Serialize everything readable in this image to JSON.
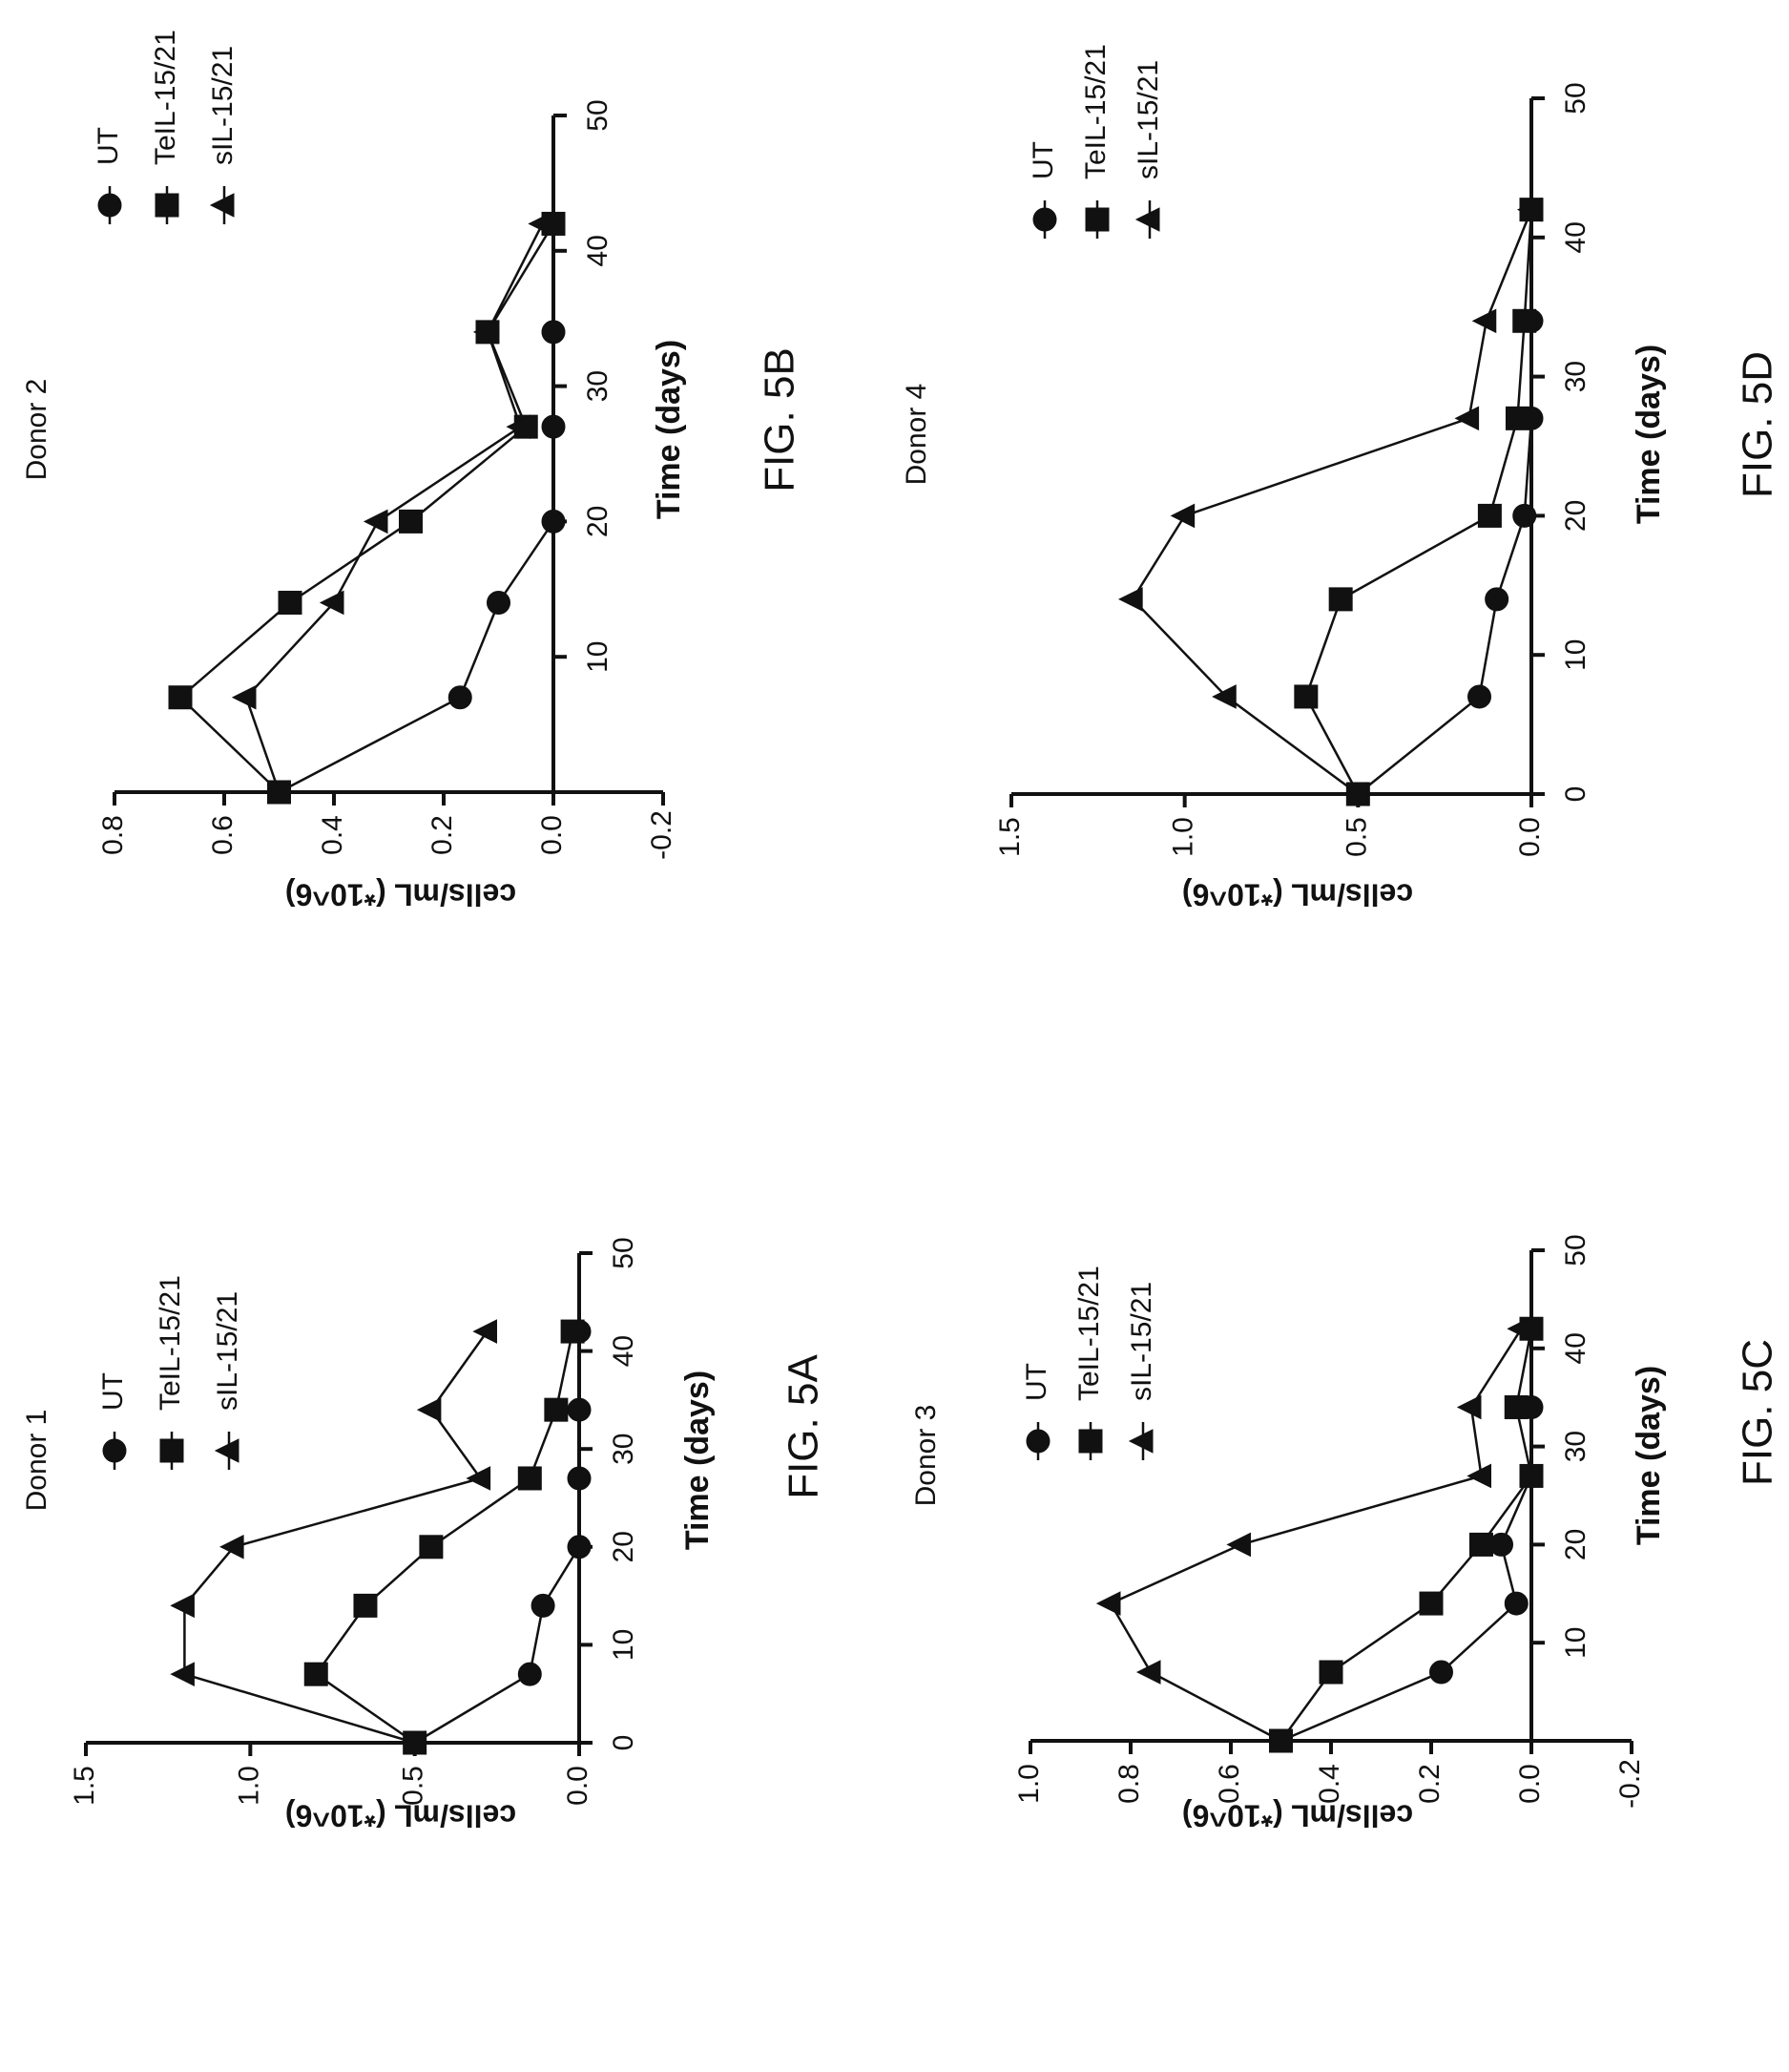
{
  "chart_data": [
    {
      "type": "line",
      "figure_label": "FIG. 5A",
      "title": "Donor 1",
      "xlabel": "Time (days)",
      "ylabel": "cells/mL (*10^6)",
      "xlim": [
        0,
        50
      ],
      "ylim": [
        0,
        1.5
      ],
      "xticks": [
        "0",
        "10",
        "20",
        "30",
        "40",
        "50"
      ],
      "yticks": [
        "0.0",
        "0.5",
        "1.0",
        "1.5"
      ],
      "legend_position": "top-right",
      "series": [
        {
          "name": "UT",
          "marker": "circle",
          "x": [
            0,
            7,
            14,
            20,
            27,
            34,
            42
          ],
          "y": [
            0.5,
            0.15,
            0.11,
            0.0,
            0.0,
            0.0,
            0.0
          ]
        },
        {
          "name": "TeIL-15/21",
          "marker": "square",
          "x": [
            0,
            7,
            14,
            20,
            27,
            34,
            42
          ],
          "y": [
            0.5,
            0.8,
            0.65,
            0.45,
            0.15,
            0.07,
            0.02
          ]
        },
        {
          "name": "sIL-15/21",
          "marker": "triangle",
          "x": [
            0,
            7,
            14,
            20,
            27,
            34,
            42
          ],
          "y": [
            0.5,
            1.2,
            1.2,
            1.05,
            0.3,
            0.45,
            0.28
          ]
        }
      ]
    },
    {
      "type": "line",
      "figure_label": "FIG. 5B",
      "title": "Donor 2",
      "xlabel": "Time (days)",
      "ylabel": "cells/mL (*10^6)",
      "xlim": [
        0,
        50
      ],
      "ylim": [
        -0.2,
        0.8
      ],
      "xticks": [
        "10",
        "20",
        "30",
        "40",
        "50"
      ],
      "yticks": [
        "-0.2",
        "0.0",
        "0.2",
        "0.4",
        "0.6",
        "0.8"
      ],
      "legend_position": "top-right",
      "series": [
        {
          "name": "UT",
          "marker": "circle",
          "x": [
            0,
            7,
            14,
            20,
            27,
            34,
            42
          ],
          "y": [
            0.5,
            0.17,
            0.1,
            0.0,
            0.0,
            0.0,
            0.0
          ]
        },
        {
          "name": "TeIL-15/21",
          "marker": "square",
          "x": [
            0,
            7,
            14,
            20,
            27,
            34,
            42
          ],
          "y": [
            0.5,
            0.68,
            0.48,
            0.26,
            0.05,
            0.12,
            0.0
          ]
        },
        {
          "name": "sIL-15/21",
          "marker": "triangle",
          "x": [
            0,
            7,
            14,
            20,
            27,
            34,
            42
          ],
          "y": [
            0.5,
            0.56,
            0.4,
            0.32,
            0.06,
            0.12,
            0.02
          ]
        }
      ]
    },
    {
      "type": "line",
      "figure_label": "FIG. 5C",
      "title": "Donor 3",
      "xlabel": "Time (days)",
      "ylabel": "cells/mL (*10^6)",
      "xlim": [
        0,
        50
      ],
      "ylim": [
        -0.2,
        1.0
      ],
      "xticks": [
        "10",
        "20",
        "30",
        "40",
        "50"
      ],
      "yticks": [
        "-0.2",
        "0.0",
        "0.2",
        "0.4",
        "0.6",
        "0.8",
        "1.0"
      ],
      "legend_position": "top-right",
      "series": [
        {
          "name": "UT",
          "marker": "circle",
          "x": [
            0,
            7,
            14,
            20,
            27,
            34,
            42
          ],
          "y": [
            0.5,
            0.18,
            0.03,
            0.06,
            0.0,
            0.0,
            0.0
          ]
        },
        {
          "name": "TeIL-15/21",
          "marker": "square",
          "x": [
            0,
            7,
            14,
            20,
            27,
            34,
            42
          ],
          "y": [
            0.5,
            0.4,
            0.2,
            0.1,
            0.0,
            0.03,
            0.0
          ]
        },
        {
          "name": "sIL-15/21",
          "marker": "triangle",
          "x": [
            0,
            7,
            14,
            20,
            27,
            34,
            42
          ],
          "y": [
            0.5,
            0.76,
            0.84,
            0.58,
            0.1,
            0.12,
            0.02
          ]
        }
      ]
    },
    {
      "type": "line",
      "figure_label": "FIG. 5D",
      "title": "Donor 4",
      "xlabel": "Time (days)",
      "ylabel": "cells/mL (*10^6)",
      "xlim": [
        0,
        50
      ],
      "ylim": [
        0,
        1.5
      ],
      "xticks": [
        "0",
        "10",
        "20",
        "30",
        "40",
        "50"
      ],
      "yticks": [
        "0.0",
        "0.5",
        "1.0",
        "1.5"
      ],
      "legend_position": "top-right",
      "series": [
        {
          "name": "UT",
          "marker": "circle",
          "x": [
            0,
            7,
            14,
            20,
            27,
            34,
            42
          ],
          "y": [
            0.5,
            0.15,
            0.1,
            0.02,
            0.0,
            0.0,
            0.0
          ]
        },
        {
          "name": "TeIL-15/21",
          "marker": "square",
          "x": [
            0,
            7,
            14,
            20,
            27,
            34,
            42
          ],
          "y": [
            0.5,
            0.65,
            0.55,
            0.12,
            0.04,
            0.02,
            0.0
          ]
        },
        {
          "name": "sIL-15/21",
          "marker": "triangle",
          "x": [
            0,
            7,
            14,
            20,
            27,
            34,
            42
          ],
          "y": [
            0.5,
            0.88,
            1.15,
            1.0,
            0.18,
            0.13,
            0.0
          ]
        }
      ]
    }
  ]
}
